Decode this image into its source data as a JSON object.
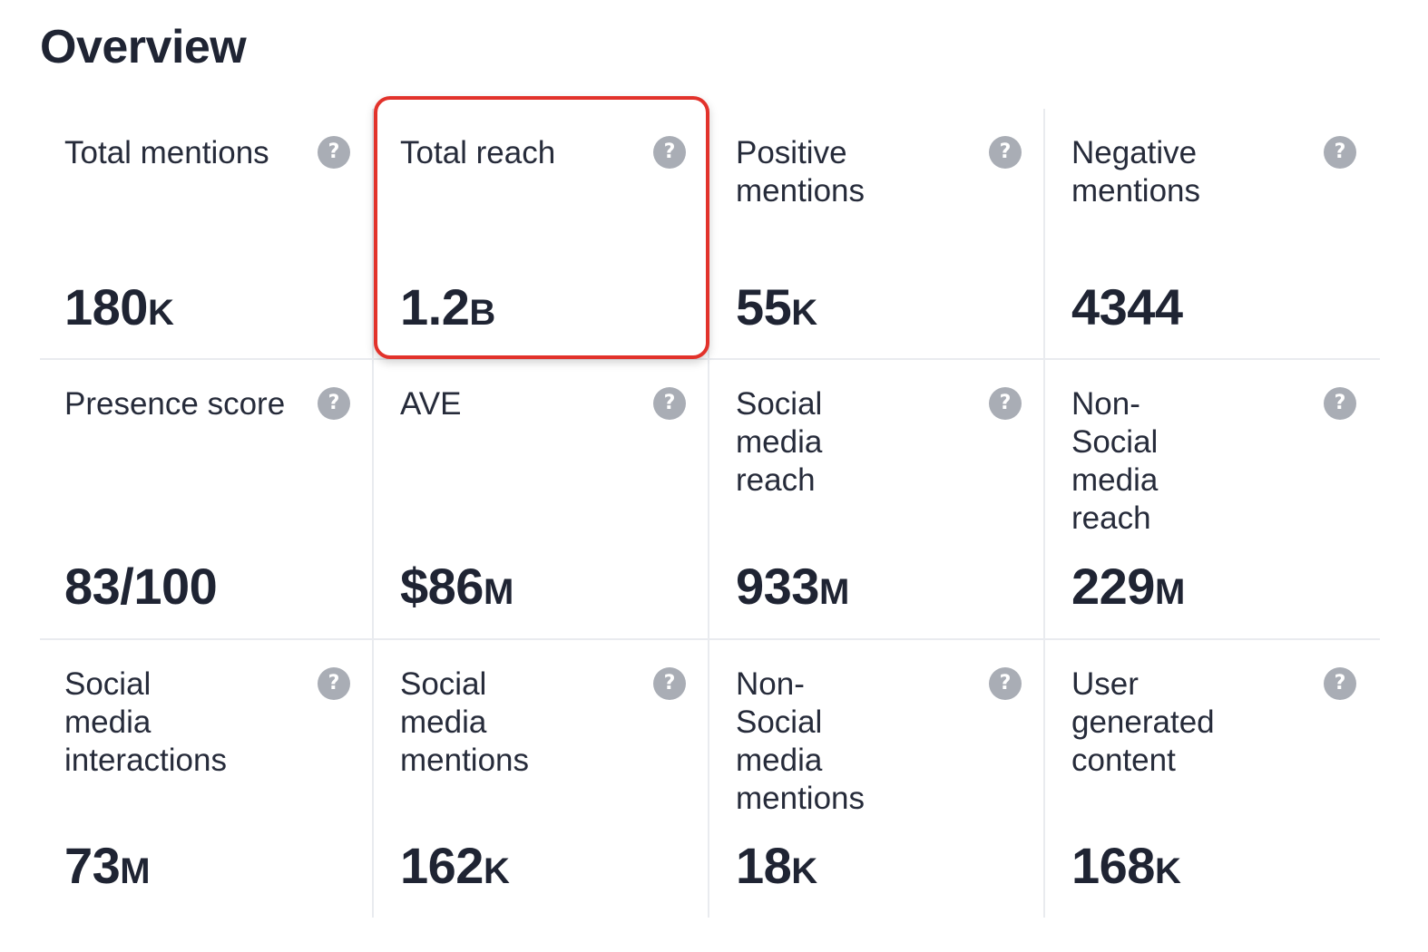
{
  "title": "Overview",
  "help_glyph": "?",
  "cards": [
    {
      "label": "Total mentions",
      "value": "180",
      "unit": "K"
    },
    {
      "label": "Total reach",
      "value": "1.2",
      "unit": "B"
    },
    {
      "label": "Positive mentions",
      "value": "55",
      "unit": "K"
    },
    {
      "label": "Negative mentions",
      "value": "4344",
      "unit": ""
    },
    {
      "label": "Presence score",
      "value": "83/100",
      "unit": ""
    },
    {
      "label": "AVE",
      "value": "$86",
      "unit": "M"
    },
    {
      "label": "Social media reach",
      "value": "933",
      "unit": "M"
    },
    {
      "label": "Non-Social media reach",
      "value": "229",
      "unit": "M"
    },
    {
      "label": "Social media interactions",
      "value": "73",
      "unit": "M"
    },
    {
      "label": "Social media mentions",
      "value": "162",
      "unit": "K"
    },
    {
      "label": "Non-Social media mentions",
      "value": "18",
      "unit": "K"
    },
    {
      "label": "User generated content",
      "value": "168",
      "unit": "K"
    }
  ],
  "colors": {
    "highlight_border": "#e2322b",
    "help_icon": "#a9adb5",
    "text": "#1f2433",
    "divider": "#e9ebef"
  },
  "highlighted_card": "Total reach"
}
